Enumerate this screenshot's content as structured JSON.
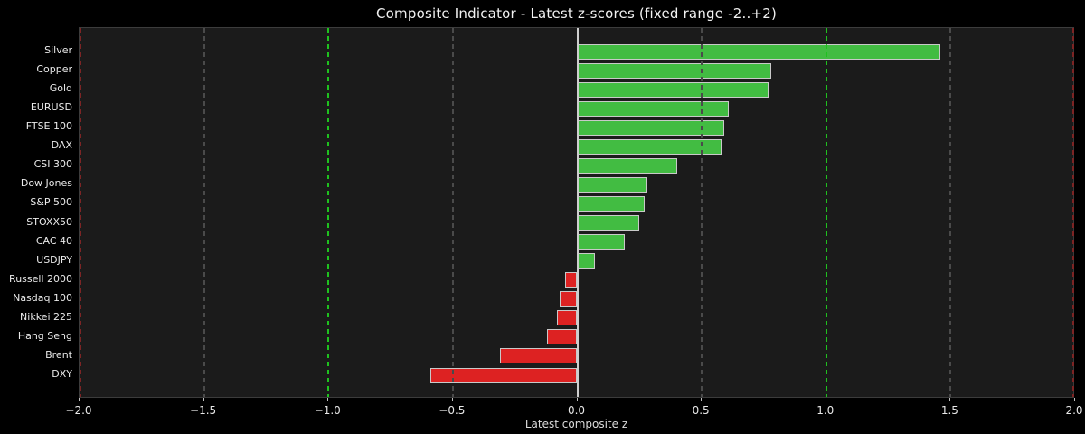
{
  "chart_data": {
    "type": "bar",
    "orientation": "horizontal",
    "title": "Composite Indicator - Latest z-scores (fixed range -2..+2)",
    "xlabel": "Latest composite z",
    "xlim": [
      -2,
      2
    ],
    "grid": true,
    "legend": null,
    "categories": [
      "Silver",
      "Copper",
      "Gold",
      "EURUSD",
      "FTSE 100",
      "DAX",
      "CSI 300",
      "Dow Jones",
      "S&P 500",
      "STOXX50",
      "CAC 40",
      "USDJPY",
      "Russell 2000",
      "Nasdaq 100",
      "Nikkei 225",
      "Hang Seng",
      "Brent",
      "DXY"
    ],
    "values": [
      1.46,
      0.78,
      0.77,
      0.61,
      0.59,
      0.58,
      0.4,
      0.28,
      0.27,
      0.25,
      0.19,
      0.07,
      -0.05,
      -0.07,
      -0.08,
      -0.12,
      -0.31,
      -0.59
    ],
    "xticks": [
      {
        "value": -2.0,
        "label": "−2.0"
      },
      {
        "value": -1.5,
        "label": "−1.5"
      },
      {
        "value": -1.0,
        "label": "−1.0"
      },
      {
        "value": -0.5,
        "label": "−0.5"
      },
      {
        "value": 0.0,
        "label": "0.0"
      },
      {
        "value": 0.5,
        "label": "0.5"
      },
      {
        "value": 1.0,
        "label": "1.0"
      },
      {
        "value": 1.5,
        "label": "1.5"
      },
      {
        "value": 2.0,
        "label": "2.0"
      }
    ],
    "guides": [
      {
        "value": -1.5,
        "style": "dashed",
        "color": "#4a4a4a",
        "name": "grid-line"
      },
      {
        "value": -0.5,
        "style": "dashed",
        "color": "#4a4a4a",
        "name": "grid-line"
      },
      {
        "value": 0.5,
        "style": "dashed",
        "color": "#4a4a4a",
        "name": "grid-line"
      },
      {
        "value": 1.5,
        "style": "dashed",
        "color": "#4a4a4a",
        "name": "grid-line"
      },
      {
        "value": -2.0,
        "style": "dashed",
        "color": "#7d2424",
        "name": "range-limit-line"
      },
      {
        "value": 2.0,
        "style": "dashed",
        "color": "#7d2424",
        "name": "range-limit-line"
      },
      {
        "value": -1.0,
        "style": "dashed",
        "color": "#1fc11f",
        "name": "threshold-line"
      },
      {
        "value": 1.0,
        "style": "dashed",
        "color": "#1fc11f",
        "name": "threshold-line"
      },
      {
        "value": 0.0,
        "style": "solid",
        "color": "#cfcfcf",
        "name": "zero-line"
      }
    ],
    "colors": {
      "positive_bar": "#42bc42",
      "negative_bar": "#dd2222",
      "bar_edge": "#c9c9c9",
      "plot_background": "#1b1b1b",
      "figure_background": "#000000",
      "text": "#eaeaea"
    }
  }
}
